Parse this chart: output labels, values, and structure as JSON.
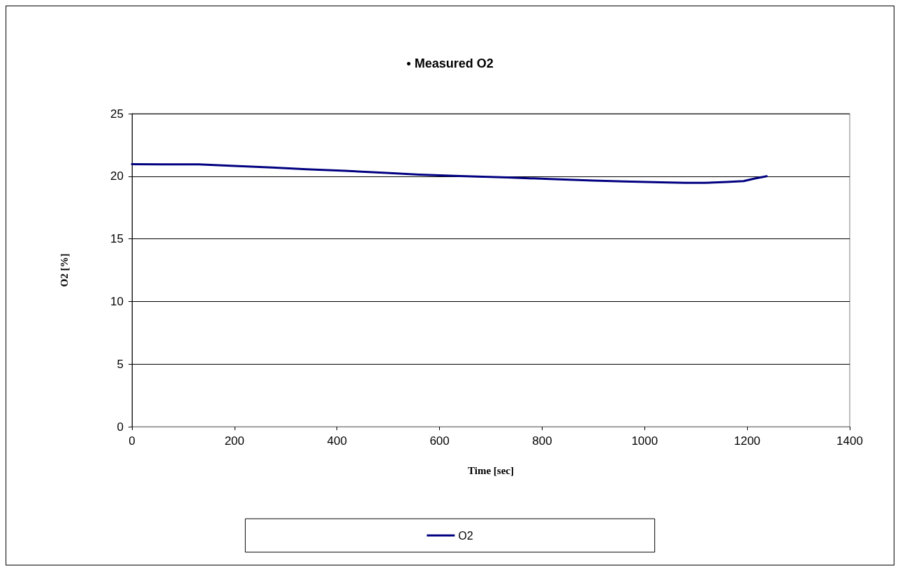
{
  "chart_data": {
    "type": "line",
    "title": "• Measured O2",
    "xlabel": "Time [sec]",
    "ylabel": "O2 [%]",
    "x": [
      0,
      60,
      130,
      200,
      273,
      340,
      416,
      490,
      561,
      640,
      732,
      815,
      900,
      960,
      1031,
      1080,
      1117,
      1160,
      1193,
      1215,
      1238
    ],
    "series": [
      {
        "name": "O2",
        "color": "#000080",
        "values": [
          20.96,
          20.95,
          20.95,
          20.82,
          20.7,
          20.56,
          20.43,
          20.28,
          20.13,
          20.02,
          19.9,
          19.78,
          19.66,
          19.58,
          19.51,
          19.47,
          19.47,
          19.55,
          19.61,
          19.82,
          20.0
        ]
      }
    ],
    "xlim": [
      0,
      1400
    ],
    "xticks": [
      0,
      200,
      400,
      600,
      800,
      1000,
      1200,
      1400
    ],
    "ylim": [
      0,
      25
    ],
    "yticks": [
      0,
      5,
      10,
      15,
      20,
      25
    ],
    "grid": "y",
    "legend": "bottom",
    "marker": "none",
    "line_style": "solid"
  }
}
